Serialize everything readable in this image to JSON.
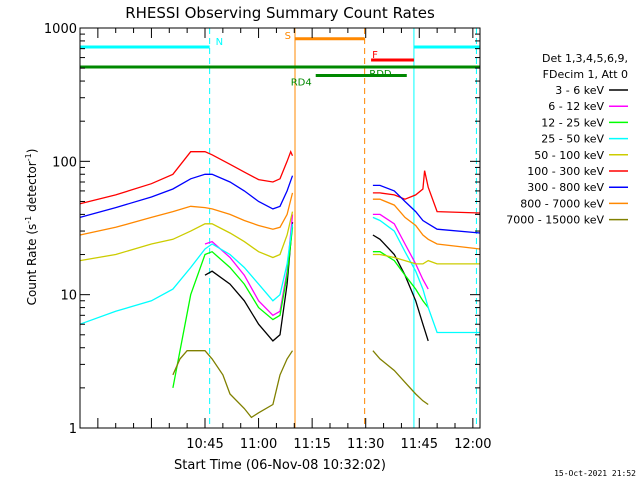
{
  "chart_data": {
    "type": "line",
    "title": "RHESSI Observing Summary Count Rates",
    "xlabel": "Start Time (06-Nov-08 10:32:02)",
    "ylabel_main": "Count Rate (s",
    "ylabel_exp1": "-1",
    "ylabel_mid": " detector",
    "ylabel_exp2": "-1",
    "ylabel_end": ")",
    "yscale": "log",
    "ylim": [
      1,
      1000
    ],
    "xlim_min": [
      10,
      122
    ],
    "x_tick_labels": [
      {
        "t": 45,
        "label": "10:45"
      },
      {
        "t": 60,
        "label": "11:00"
      },
      {
        "t": 75,
        "label": "11:15"
      },
      {
        "t": 90,
        "label": "11:30"
      },
      {
        "t": 105,
        "label": "11:45"
      },
      {
        "t": 120,
        "label": "12:00"
      }
    ],
    "y_tick_labels": [
      {
        "v": 1,
        "label": "1"
      },
      {
        "v": 10,
        "label": "10"
      },
      {
        "v": 100,
        "label": "100"
      },
      {
        "v": 1000,
        "label": "1000"
      }
    ],
    "legend_header1": "Det 1,3,4,5,6,9,",
    "legend_header2": "FDecim 1, Att 0",
    "legend_placement": "right",
    "timestamp": "15-Oct-2021 21:52",
    "series": [
      {
        "name": "3 - 6 keV",
        "color": "#000000",
        "x": [
          10,
          11,
          45,
          47,
          52,
          56,
          60,
          64,
          66,
          68,
          69.5,
          70
        ],
        "y": [
          null,
          null,
          14,
          15,
          12,
          9,
          6,
          4.5,
          5,
          12,
          35,
          null
        ],
        "x2": [
          92,
          94,
          98,
          101,
          104,
          106,
          107.5
        ],
        "y2": [
          28,
          26,
          20,
          14,
          9,
          6,
          4.5
        ]
      },
      {
        "name": "6 - 12 keV",
        "color": "#ff00ff",
        "x": [
          45,
          47,
          52,
          56,
          60,
          64,
          66,
          68,
          69.5
        ],
        "y": [
          24,
          25,
          19,
          14,
          9,
          7,
          7.5,
          15,
          40
        ],
        "x2": [
          92,
          94,
          98,
          101,
          104,
          106,
          107.5
        ],
        "y2": [
          40,
          40,
          34,
          24,
          17,
          13,
          11
        ]
      },
      {
        "name": "12 - 25 keV",
        "color": "#00ff00",
        "x": [
          36,
          41,
          45,
          47,
          52,
          56,
          60,
          64,
          66,
          68,
          69.5
        ],
        "y": [
          2,
          10,
          20,
          21,
          16,
          12,
          8,
          6.5,
          7,
          14,
          32
        ],
        "x2": [
          92,
          94,
          98,
          101,
          104,
          106,
          107.5
        ],
        "y2": [
          21,
          21,
          18,
          14,
          11,
          9,
          8
        ]
      },
      {
        "name": "25 - 50 keV",
        "color": "#00ffff",
        "x": [
          10,
          20,
          30,
          36,
          41,
          45,
          47,
          52,
          56,
          60,
          64,
          66,
          68,
          69.5
        ],
        "y": [
          6,
          7.5,
          9,
          11,
          16,
          22,
          24,
          20,
          16,
          12,
          9,
          10,
          17,
          34
        ],
        "x2": [
          92,
          94,
          98,
          101,
          104,
          106,
          107.5,
          110,
          122
        ],
        "y2": [
          38,
          36,
          30,
          21,
          15,
          11,
          8,
          5.2,
          5.2
        ]
      },
      {
        "name": "50 - 100 keV",
        "color": "#cccc00",
        "x": [
          10,
          20,
          30,
          36,
          41,
          45,
          47,
          52,
          56,
          60,
          64,
          66,
          68,
          69.5
        ],
        "y": [
          18,
          20,
          24,
          26,
          30,
          34,
          34,
          29,
          25,
          21,
          19,
          20,
          28,
          42
        ],
        "x2": [
          92,
          94,
          98,
          101,
          104,
          106,
          107.5,
          110,
          122
        ],
        "y2": [
          20,
          20,
          19,
          18,
          17,
          17,
          18,
          17,
          17
        ]
      },
      {
        "name": "100 - 300 keV",
        "color": "#ff0000",
        "x": [
          10,
          20,
          30,
          36,
          41,
          45,
          47,
          52,
          56,
          60,
          64,
          66,
          68,
          69,
          69.5
        ],
        "y": [
          48,
          56,
          68,
          80,
          118,
          118,
          112,
          95,
          83,
          73,
          70,
          74,
          100,
          118,
          110
        ],
        "x2": [
          92,
          94,
          98,
          101,
          104,
          106,
          106.5,
          107.5,
          110,
          122
        ],
        "y2": [
          58,
          58,
          56,
          52,
          56,
          62,
          85,
          64,
          42,
          41
        ]
      },
      {
        "name": "300 - 800 keV",
        "color": "#0000ff",
        "x": [
          10,
          20,
          30,
          36,
          41,
          45,
          47,
          52,
          56,
          60,
          64,
          66,
          68,
          69.5
        ],
        "y": [
          38,
          45,
          54,
          62,
          74,
          80,
          80,
          70,
          60,
          50,
          44,
          46,
          60,
          78
        ],
        "x2": [
          92,
          94,
          98,
          101,
          104,
          106,
          107.5,
          110,
          122
        ],
        "y2": [
          66,
          66,
          60,
          50,
          42,
          36,
          34,
          31,
          29
        ]
      },
      {
        "name": "800 - 7000 keV",
        "color": "#ff8800",
        "x": [
          10,
          20,
          30,
          36,
          41,
          45,
          47,
          52,
          56,
          60,
          64,
          66,
          68,
          69.5
        ],
        "y": [
          28,
          32,
          38,
          42,
          46,
          45,
          44,
          40,
          36,
          33,
          31,
          32,
          40,
          58
        ],
        "x2": [
          92,
          94,
          98,
          101,
          104,
          106,
          107.5,
          110,
          122
        ],
        "y2": [
          52,
          52,
          47,
          38,
          33,
          28,
          26,
          24,
          22
        ]
      },
      {
        "name": "7000 - 15000 keV",
        "color": "#808000",
        "x": [
          10,
          36,
          38,
          40,
          45,
          47,
          50,
          52,
          56,
          58,
          60,
          64,
          66,
          68,
          69.5
        ],
        "y": [
          null,
          2.5,
          3.3,
          3.8,
          3.8,
          3.3,
          2.5,
          1.8,
          1.4,
          1.2,
          1.3,
          1.5,
          2.5,
          3.3,
          3.8
        ],
        "x2": [
          92,
          94,
          98,
          101,
          104,
          106,
          107.5
        ],
        "y2": [
          3.8,
          3.3,
          2.7,
          2.2,
          1.8,
          1.6,
          1.5
        ]
      }
    ],
    "flag_bars": [
      {
        "label": "N",
        "color": "#00ffff",
        "y": 720,
        "x_start": 10,
        "x_end": 46.3,
        "x2_start": 103.5,
        "x2_end": 122
      },
      {
        "label": "S",
        "color": "#ff8800",
        "y": 830,
        "x_start": 70.2,
        "x_end": 89.7
      },
      {
        "label": "F",
        "color": "#ff0000",
        "y": 575,
        "x_start": 91.5,
        "x_end": 103.5
      },
      {
        "label": "RDD",
        "color": "#008800",
        "y": 510,
        "x_start": 10,
        "x_end": 122
      },
      {
        "label": "RD4",
        "color": "#008800",
        "y": 440,
        "x_start": 76,
        "x_end": 101.5
      }
    ],
    "vertical_markers": [
      {
        "x": 46.3,
        "color": "#00ffff",
        "style": "dashed"
      },
      {
        "x": 70.2,
        "color": "#ff8800",
        "style": "solid"
      },
      {
        "x": 89.7,
        "color": "#ff8800",
        "style": "dashed"
      },
      {
        "x": 103.5,
        "color": "#00ffff",
        "style": "solid"
      },
      {
        "x": 121,
        "color": "#00ffff",
        "style": "dashed"
      }
    ]
  }
}
